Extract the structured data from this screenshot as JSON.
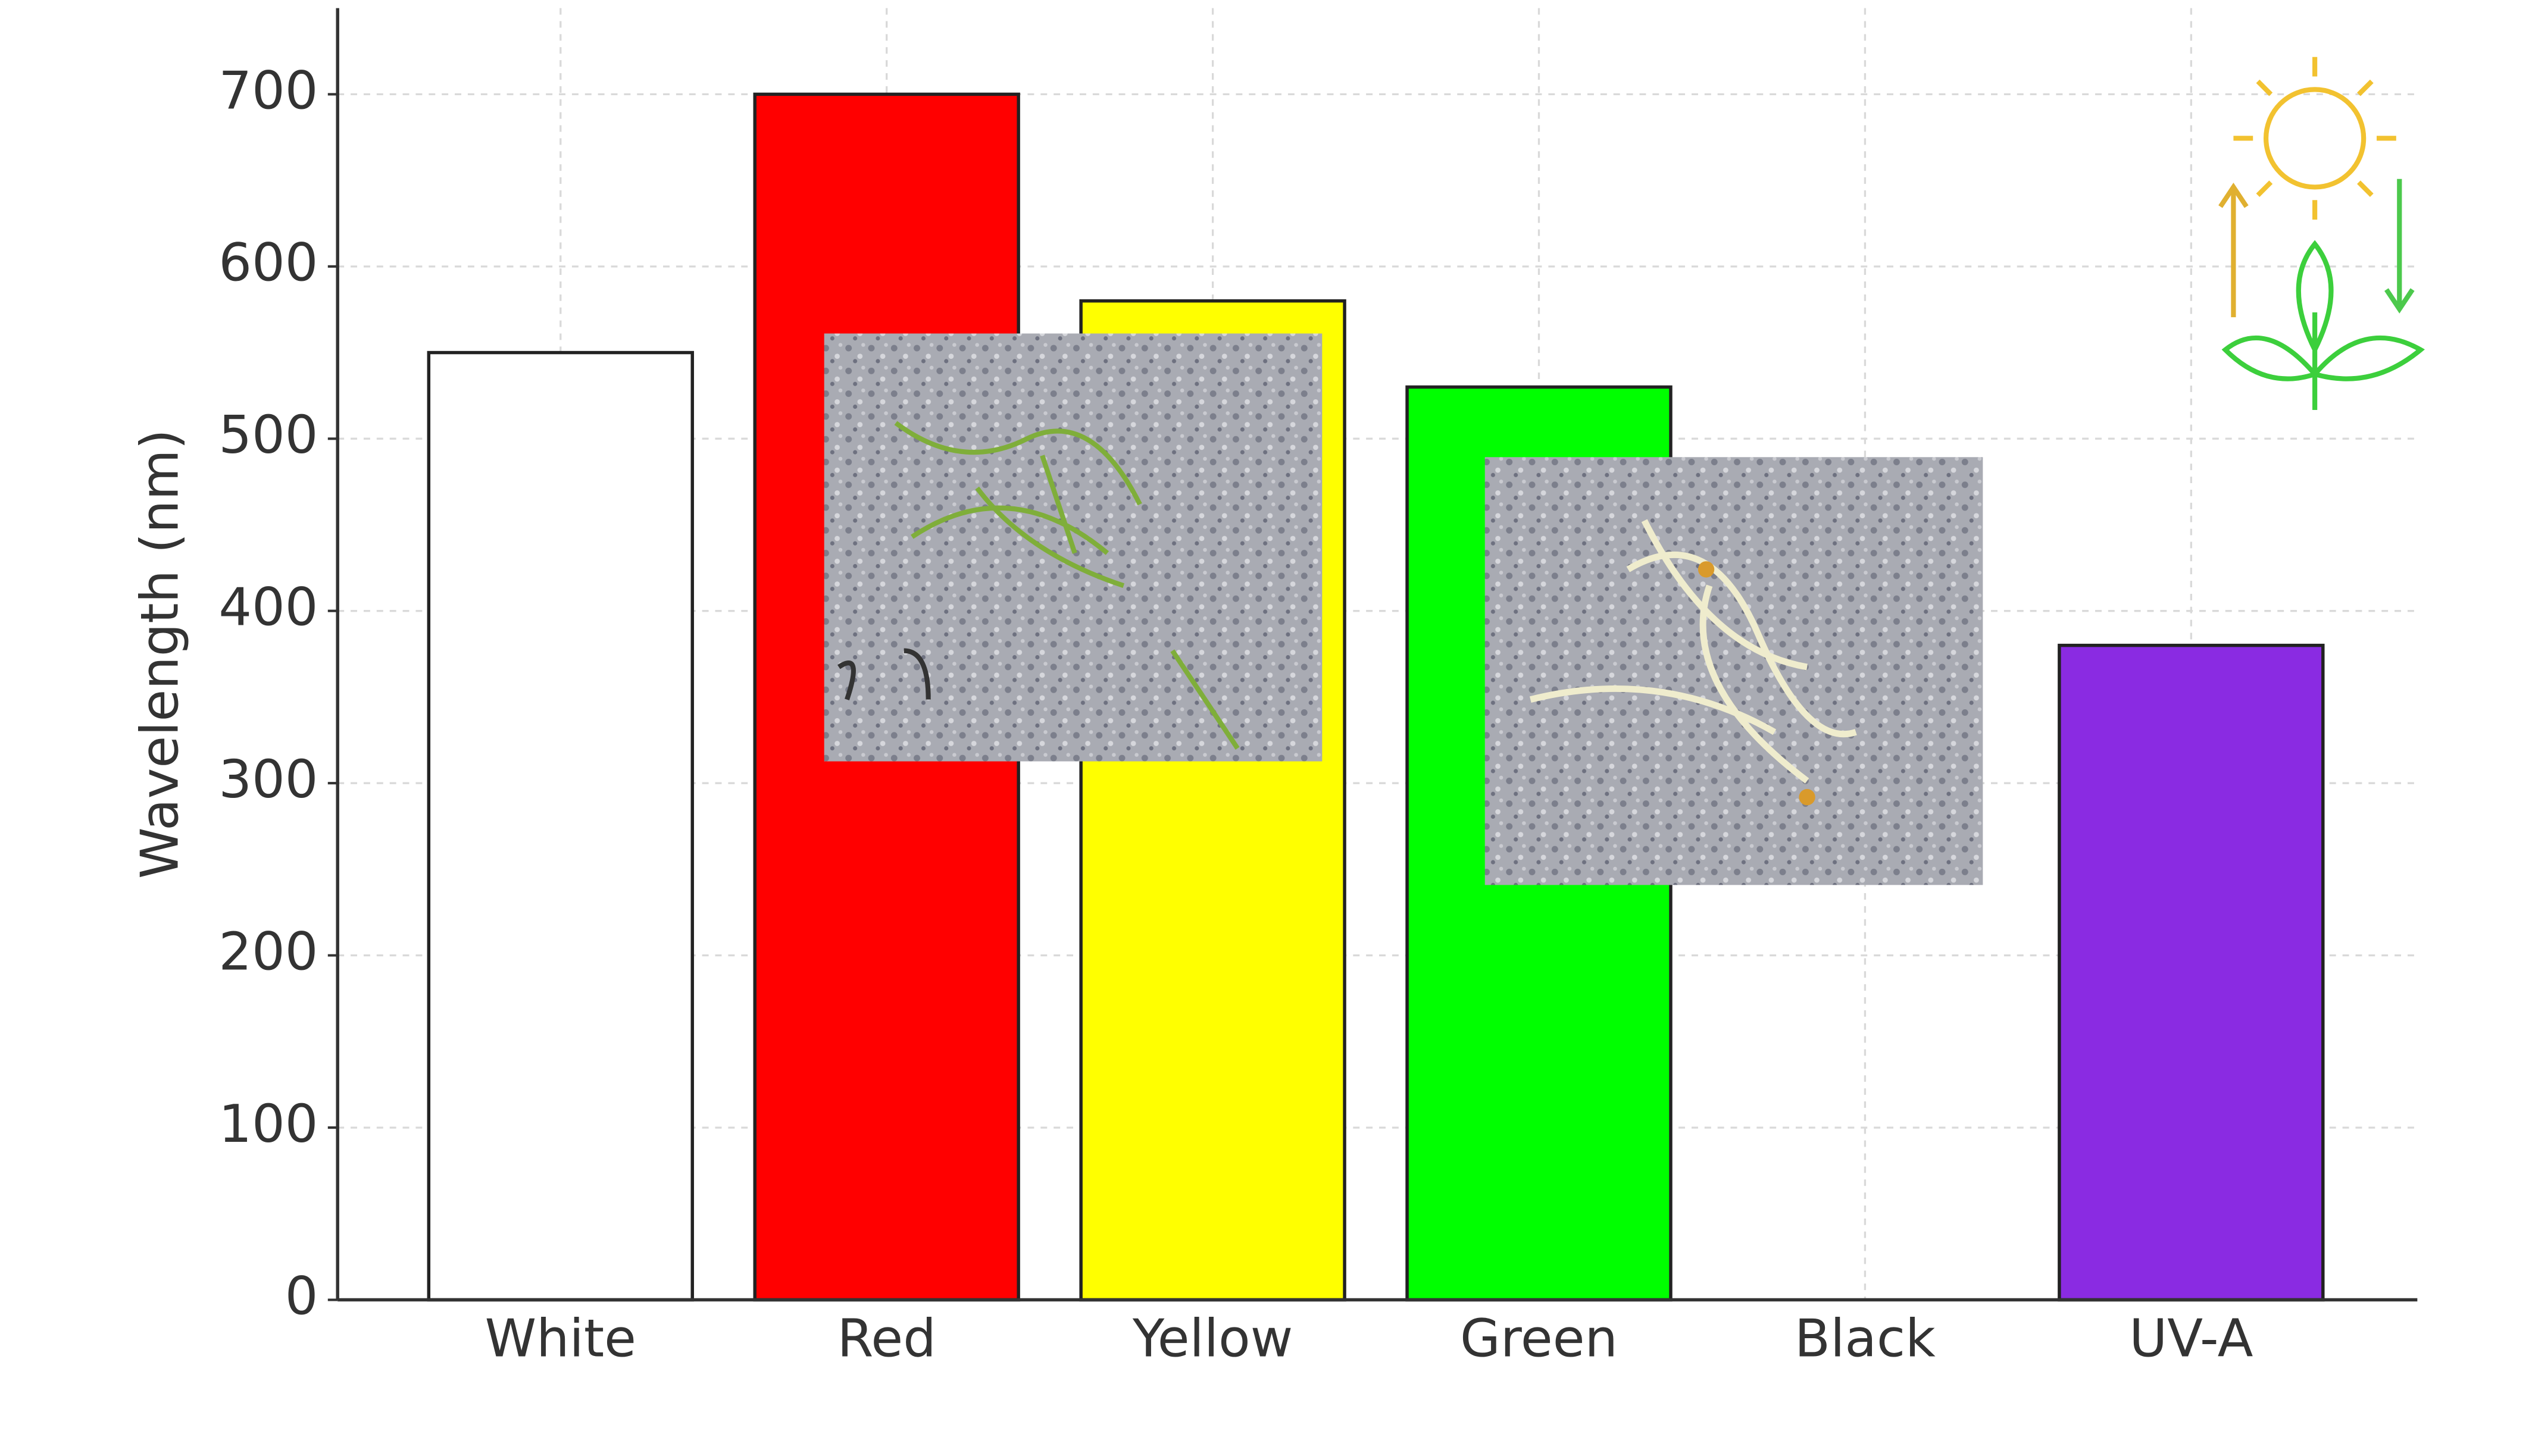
{
  "chart_data": {
    "type": "bar",
    "y_label": "Wavelength (nm)",
    "categories": [
      "White",
      "Red",
      "Yellow",
      "Green",
      "Black",
      "UV-A"
    ],
    "values": [
      550,
      700,
      580,
      530,
      0,
      380
    ],
    "colors": [
      "#ffffff",
      "#ff0000",
      "#ffff00",
      "#00ff00",
      "#000000",
      "#8a2be2"
    ],
    "ylim": [
      0,
      750
    ],
    "yticks": [
      0,
      100,
      200,
      300,
      400,
      500,
      600,
      700
    ],
    "grid": true
  }
}
